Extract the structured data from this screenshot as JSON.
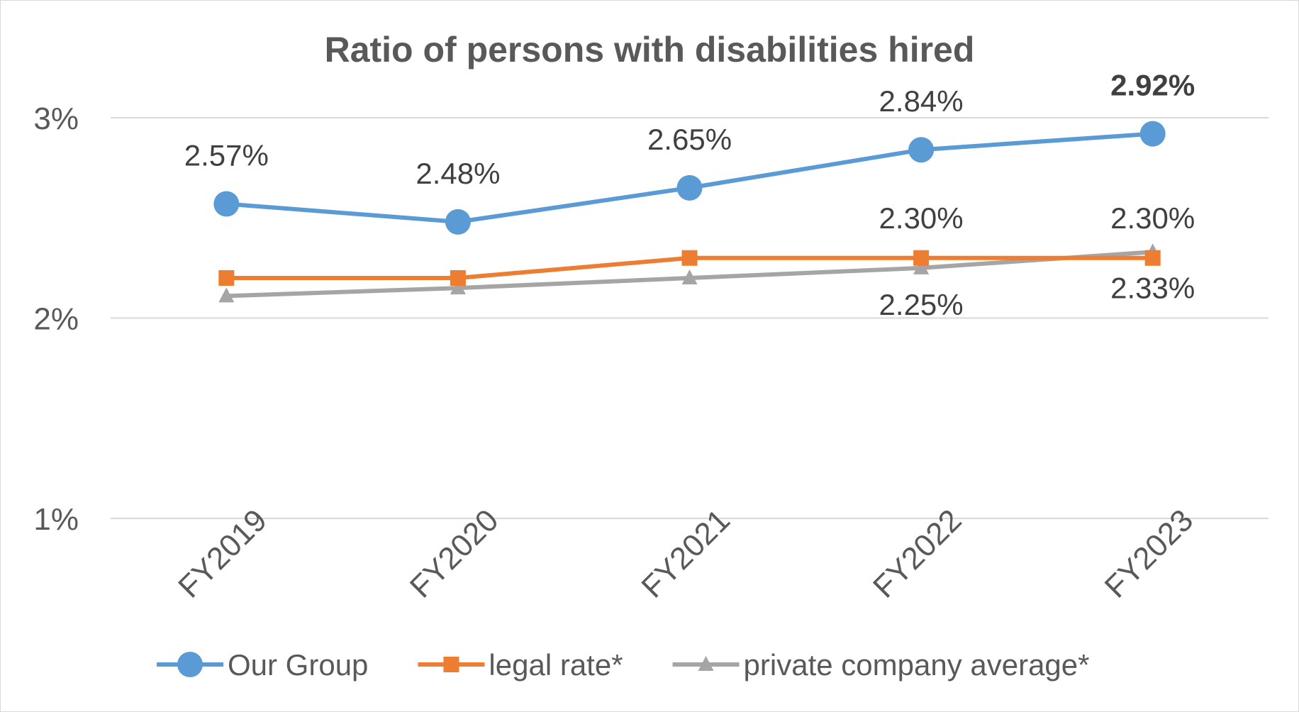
{
  "chart_data": {
    "type": "line",
    "title": "Ratio of persons with disabilities hired",
    "xlabel": "",
    "ylabel": "",
    "categories": [
      "FY2019",
      "FY2020",
      "FY2021",
      "FY2022",
      "FY2023"
    ],
    "ylim": [
      1,
      3
    ],
    "y_ticks": [
      {
        "value": 1,
        "label": "1%"
      },
      {
        "value": 2,
        "label": "2%"
      },
      {
        "value": 3,
        "label": "3%"
      }
    ],
    "grid": true,
    "legend_position": "bottom",
    "series": [
      {
        "name": "Our Group",
        "color": "#5b9bd5",
        "marker": "circle",
        "values": [
          2.57,
          2.48,
          2.65,
          2.84,
          2.92
        ],
        "labels": [
          {
            "index": 0,
            "text": "2.57%",
            "bold": false
          },
          {
            "index": 1,
            "text": "2.48%",
            "bold": false
          },
          {
            "index": 2,
            "text": "2.65%",
            "bold": false
          },
          {
            "index": 3,
            "text": "2.84%",
            "bold": false
          },
          {
            "index": 4,
            "text": "2.92%",
            "bold": true
          }
        ]
      },
      {
        "name": "legal rate*",
        "color": "#ed7d31",
        "marker": "square",
        "values": [
          2.2,
          2.2,
          2.3,
          2.3,
          2.3
        ],
        "labels": [
          {
            "index": 3,
            "text": "2.30%",
            "bold": false
          },
          {
            "index": 4,
            "text": "2.30%",
            "bold": false
          }
        ]
      },
      {
        "name": "private company average*",
        "color": "#a5a5a5",
        "marker": "triangle",
        "values": [
          2.11,
          2.15,
          2.2,
          2.25,
          2.33
        ],
        "labels": [
          {
            "index": 3,
            "text": "2.25%",
            "bold": false
          },
          {
            "index": 4,
            "text": "2.33%",
            "bold": false
          }
        ]
      }
    ]
  }
}
